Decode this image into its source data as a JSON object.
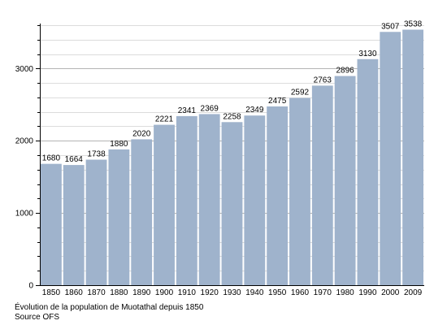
{
  "chart_data": {
    "type": "bar",
    "title": "",
    "xlabel": "",
    "ylabel": "",
    "categories": [
      "1850",
      "1860",
      "1870",
      "1880",
      "1890",
      "1900",
      "1910",
      "1920",
      "1930",
      "1940",
      "1950",
      "1960",
      "1970",
      "1980",
      "1990",
      "2000",
      "2009"
    ],
    "values": [
      1680,
      1664,
      1738,
      1880,
      2020,
      2221,
      2341,
      2369,
      2258,
      2349,
      2475,
      2592,
      2763,
      2896,
      3130,
      3507,
      3538
    ],
    "ylim": [
      0,
      3600
    ],
    "yticks": [
      0,
      1000,
      2000,
      3000
    ],
    "minor_step": 200,
    "grid": true,
    "bar_color": "#9fb3cc",
    "grid_color": "#c8c8c8",
    "data_labels": true
  },
  "caption": {
    "line1": "Évolution de la population de Muotathal depuis 1850",
    "line2": "Source OFS"
  }
}
